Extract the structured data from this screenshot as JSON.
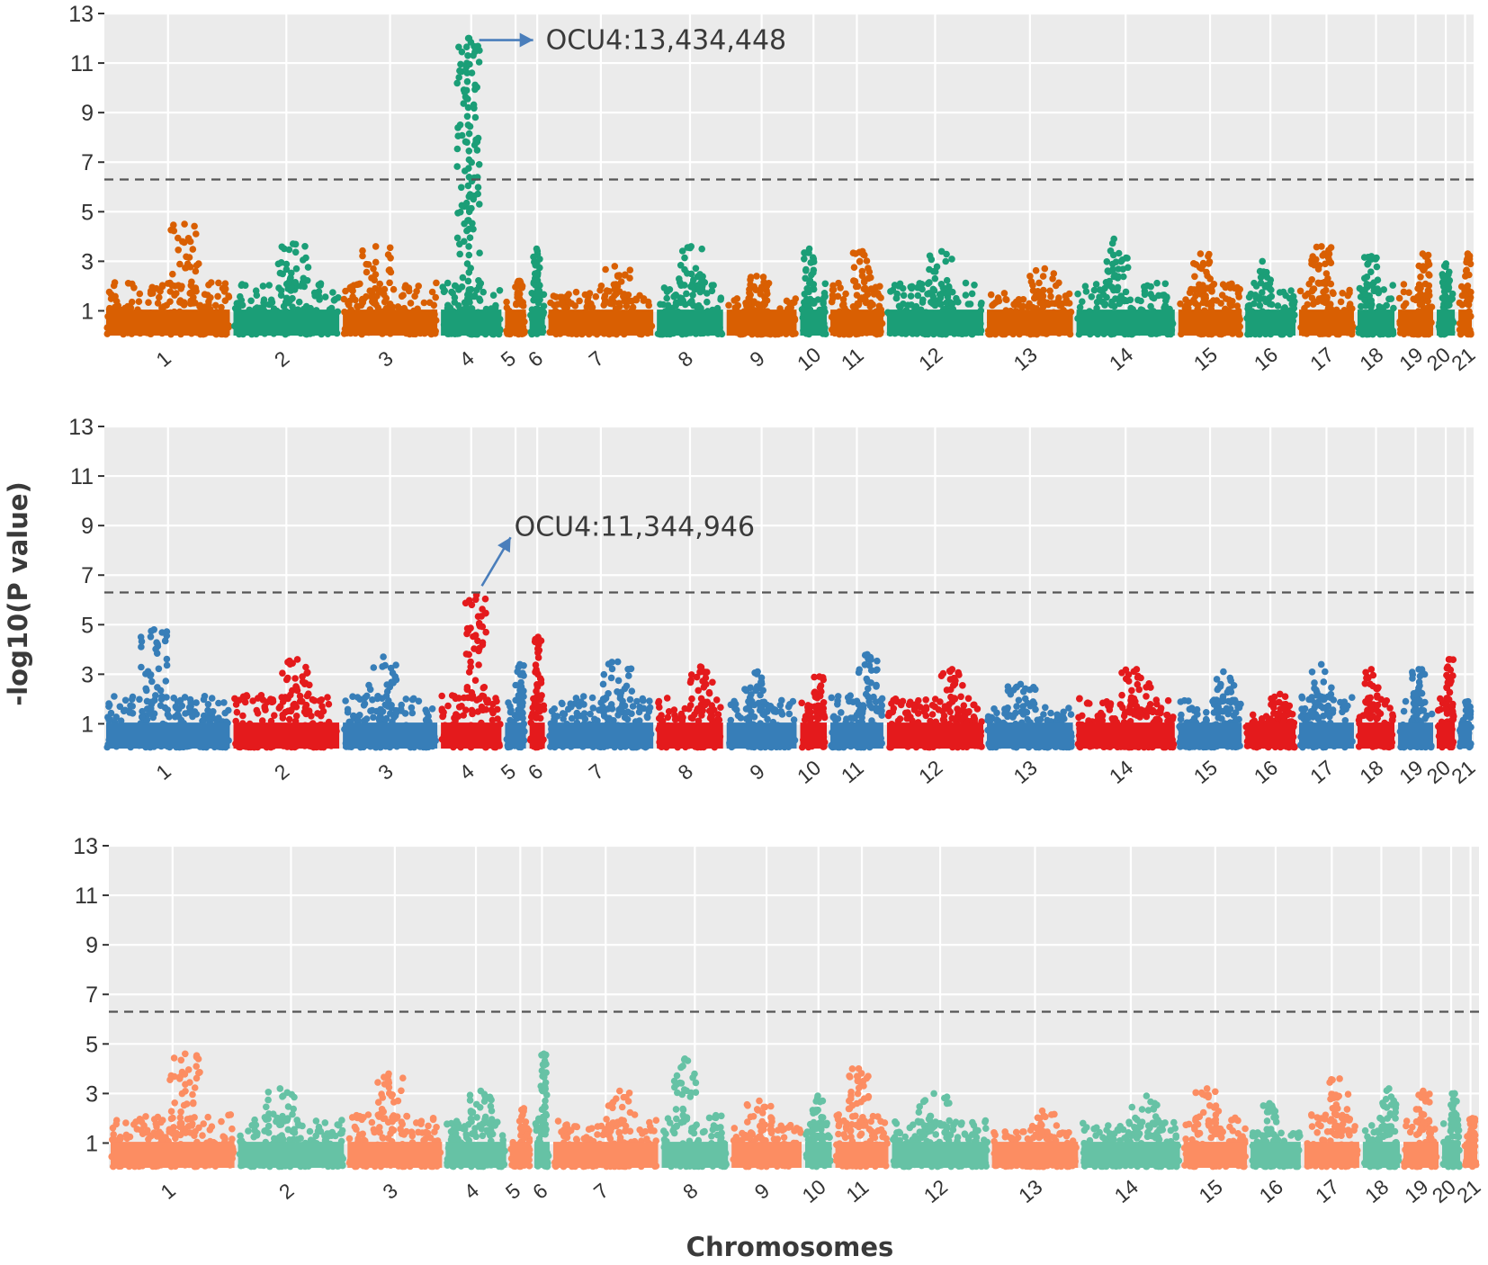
{
  "chart_data": [
    {
      "type": "scatter",
      "subtype": "manhattan",
      "panel": 1,
      "ylim": [
        0,
        13
      ],
      "yticks": [
        1,
        3,
        5,
        7,
        9,
        11,
        13
      ],
      "threshold": 6.3,
      "chromosomes": [
        "1",
        "2",
        "3",
        "4",
        "5",
        "6",
        "7",
        "8",
        "9",
        "10",
        "11",
        "12",
        "13",
        "14",
        "15",
        "16",
        "17",
        "18",
        "19",
        "20",
        "21"
      ],
      "colors": [
        "#d95f02",
        "#1b9e77"
      ],
      "annotation": {
        "text": "OCU4:13,434,448",
        "chromosome": "4",
        "value": 12.0
      },
      "peaks": [
        {
          "chromosome": "1",
          "max": 4.5
        },
        {
          "chromosome": "2",
          "max": 3.7
        },
        {
          "chromosome": "3",
          "max": 3.6
        },
        {
          "chromosome": "4",
          "max": 12.0
        },
        {
          "chromosome": "5",
          "max": 2.2
        },
        {
          "chromosome": "6",
          "max": 3.5
        },
        {
          "chromosome": "7",
          "max": 2.8
        },
        {
          "chromosome": "8",
          "max": 3.6
        },
        {
          "chromosome": "9",
          "max": 2.4
        },
        {
          "chromosome": "10",
          "max": 3.5
        },
        {
          "chromosome": "11",
          "max": 3.4
        },
        {
          "chromosome": "12",
          "max": 3.4
        },
        {
          "chromosome": "13",
          "max": 2.7
        },
        {
          "chromosome": "14",
          "max": 3.9
        },
        {
          "chromosome": "15",
          "max": 3.3
        },
        {
          "chromosome": "16",
          "max": 3.0
        },
        {
          "chromosome": "17",
          "max": 3.6
        },
        {
          "chromosome": "18",
          "max": 3.2
        },
        {
          "chromosome": "19",
          "max": 3.3
        },
        {
          "chromosome": "20",
          "max": 2.9
        },
        {
          "chromosome": "21",
          "max": 3.3
        }
      ]
    },
    {
      "type": "scatter",
      "subtype": "manhattan",
      "panel": 2,
      "ylim": [
        0,
        13
      ],
      "yticks": [
        1,
        3,
        5,
        7,
        9,
        11,
        13
      ],
      "threshold": 6.3,
      "chromosomes": [
        "1",
        "2",
        "3",
        "4",
        "5",
        "6",
        "7",
        "8",
        "9",
        "10",
        "11",
        "12",
        "13",
        "14",
        "15",
        "16",
        "17",
        "18",
        "19",
        "20",
        "21"
      ],
      "colors": [
        "#377eb8",
        "#e41a1c"
      ],
      "annotation": {
        "text": "OCU4:11,344,946",
        "chromosome": "4",
        "value": 6.2
      },
      "peaks": [
        {
          "chromosome": "1",
          "max": 4.8
        },
        {
          "chromosome": "2",
          "max": 3.6
        },
        {
          "chromosome": "3",
          "max": 3.7
        },
        {
          "chromosome": "4",
          "max": 6.2
        },
        {
          "chromosome": "5",
          "max": 3.4
        },
        {
          "chromosome": "6",
          "max": 4.5
        },
        {
          "chromosome": "7",
          "max": 3.5
        },
        {
          "chromosome": "8",
          "max": 3.3
        },
        {
          "chromosome": "9",
          "max": 3.1
        },
        {
          "chromosome": "10",
          "max": 2.9
        },
        {
          "chromosome": "11",
          "max": 3.8
        },
        {
          "chromosome": "12",
          "max": 3.2
        },
        {
          "chromosome": "13",
          "max": 2.6
        },
        {
          "chromosome": "14",
          "max": 3.2
        },
        {
          "chromosome": "15",
          "max": 3.1
        },
        {
          "chromosome": "16",
          "max": 2.2
        },
        {
          "chromosome": "17",
          "max": 3.4
        },
        {
          "chromosome": "18",
          "max": 3.2
        },
        {
          "chromosome": "19",
          "max": 3.2
        },
        {
          "chromosome": "20",
          "max": 3.6
        },
        {
          "chromosome": "21",
          "max": 1.9
        }
      ]
    },
    {
      "type": "scatter",
      "subtype": "manhattan",
      "panel": 3,
      "ylim": [
        0,
        13
      ],
      "yticks": [
        1,
        3,
        5,
        7,
        9,
        11,
        13
      ],
      "threshold": 6.3,
      "chromosomes": [
        "1",
        "2",
        "3",
        "4",
        "5",
        "6",
        "7",
        "8",
        "9",
        "10",
        "11",
        "12",
        "13",
        "14",
        "15",
        "16",
        "17",
        "18",
        "19",
        "20",
        "21"
      ],
      "colors": [
        "#fc8d62",
        "#66c2a5"
      ],
      "annotation": null,
      "peaks": [
        {
          "chromosome": "1",
          "max": 4.6
        },
        {
          "chromosome": "2",
          "max": 3.2
        },
        {
          "chromosome": "3",
          "max": 3.8
        },
        {
          "chromosome": "4",
          "max": 3.1
        },
        {
          "chromosome": "5",
          "max": 2.4
        },
        {
          "chromosome": "6",
          "max": 4.6
        },
        {
          "chromosome": "7",
          "max": 3.1
        },
        {
          "chromosome": "8",
          "max": 4.4
        },
        {
          "chromosome": "9",
          "max": 2.7
        },
        {
          "chromosome": "10",
          "max": 2.9
        },
        {
          "chromosome": "11",
          "max": 4.0
        },
        {
          "chromosome": "12",
          "max": 3.0
        },
        {
          "chromosome": "13",
          "max": 2.3
        },
        {
          "chromosome": "14",
          "max": 2.9
        },
        {
          "chromosome": "15",
          "max": 3.2
        },
        {
          "chromosome": "16",
          "max": 2.6
        },
        {
          "chromosome": "17",
          "max": 3.6
        },
        {
          "chromosome": "18",
          "max": 3.2
        },
        {
          "chromosome": "19",
          "max": 3.1
        },
        {
          "chromosome": "20",
          "max": 3.0
        },
        {
          "chromosome": "21",
          "max": 2.0
        }
      ]
    }
  ],
  "shared": {
    "ylabel": "-log10(P value)",
    "xlabel": "Chromosomes"
  }
}
